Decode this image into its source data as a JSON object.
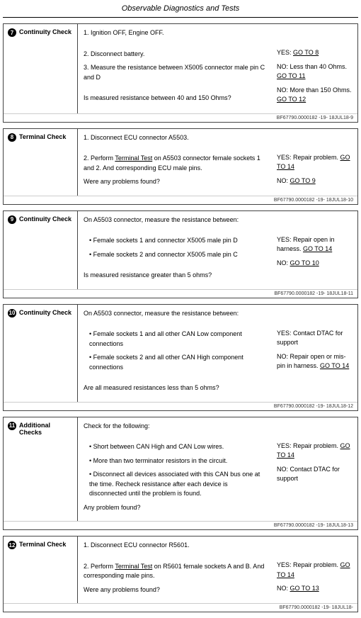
{
  "title": "Observable Diagnostics and Tests",
  "footerRef": "BF67790.0000182 -19- 18JUL18-",
  "steps": [
    {
      "num": "7",
      "label": "Continuity Check",
      "mid": [
        {
          "t": "p",
          "v": "1. Ignition OFF, Engine OFF."
        },
        {
          "t": "sp"
        },
        {
          "t": "p",
          "v": "2. Disconnect battery."
        },
        {
          "t": "p",
          "v": "3. Measure the resistance between X5005 connector male pin C and D"
        },
        {
          "t": "sp"
        },
        {
          "t": "p",
          "v": "Is measured resistance between 40 and 150 Ohms?"
        }
      ],
      "right": [
        {
          "pre": "YES:  ",
          "link": "GO TO 8"
        },
        {
          "pre": "NO:  Less than 40 Ohms.  ",
          "link": "GO TO 11"
        },
        {
          "pre": "NO:  More than 150 Ohms.  ",
          "link": "GO TO 12"
        }
      ],
      "foot": "9"
    },
    {
      "num": "8",
      "label": "Terminal Check",
      "mid": [
        {
          "t": "p",
          "v": "1. Disconnect ECU connector A5503."
        },
        {
          "t": "sp"
        },
        {
          "t": "p",
          "v": "2. Perform ",
          "u": "Terminal Test",
          "v2": " on A5503 connector female sockets 1 and 2.  And corresponding ECU male pins."
        },
        {
          "t": "p",
          "v": "Were any problems found?"
        }
      ],
      "right": [
        {
          "pre": "YES:  Repair problem. ",
          "link": "GO TO 14"
        },
        {
          "pre": "NO:  ",
          "link": "GO TO 9"
        }
      ],
      "foot": "10"
    },
    {
      "num": "9",
      "label": "Continuity Check",
      "mid": [
        {
          "t": "p",
          "v": "On A5503 connector, measure the resistance between:"
        },
        {
          "t": "sp"
        },
        {
          "t": "b",
          "v": "Female sockets 1 and connector X5005 male pin D"
        },
        {
          "t": "b",
          "v": "Female sockets 2 and connector X5005 male pin C"
        },
        {
          "t": "sp"
        },
        {
          "t": "p",
          "v": "Is measured resistance greater than 5 ohms?"
        }
      ],
      "right": [
        {
          "pre": "YES:  Repair open in harness. ",
          "link": "GO TO 14"
        },
        {
          "pre": "NO:  ",
          "link": "GO TO 10"
        }
      ],
      "foot": "11"
    },
    {
      "num": "10",
      "label": "Continuity Check",
      "mid": [
        {
          "t": "p",
          "v": "On A5503 connector, measure the resistance between:"
        },
        {
          "t": "sp"
        },
        {
          "t": "b",
          "v": "Female sockets 1 and all other CAN Low component connections"
        },
        {
          "t": "b",
          "v": "Female sockets 2 and all other CAN High component connections"
        },
        {
          "t": "sp"
        },
        {
          "t": "p",
          "v": "Are all measured resistances less than 5 ohms?"
        }
      ],
      "right": [
        {
          "pre": "YES:  Contact DTAC for support"
        },
        {
          "pre": "NO:   Repair open or mis-pin in harness. ",
          "link": "GO TO 14"
        }
      ],
      "foot": "12"
    },
    {
      "num": "11",
      "label": "Additional Checks",
      "mid": [
        {
          "t": "p",
          "v": "Check for the following:"
        },
        {
          "t": "sp"
        },
        {
          "t": "b",
          "v": "Short between CAN High and CAN Low wires."
        },
        {
          "t": "b",
          "v": "More than two terminator resistors in the circuit."
        },
        {
          "t": "b",
          "v": "Disconnect all devices associated with this CAN bus one at the time.  Recheck resistance after each device is disconnected until the problem is found."
        },
        {
          "t": "p",
          "v": "Any problem found?"
        }
      ],
      "right": [
        {
          "pre": "YES:  Repair problem. ",
          "link": "GO TO 14"
        },
        {
          "pre": "NO:  Contact DTAC for support"
        }
      ],
      "foot": "13"
    },
    {
      "num": "12",
      "label": "Terminal Check",
      "mid": [
        {
          "t": "p",
          "v": "1. Disconnect ECU connector R5601."
        },
        {
          "t": "sp"
        },
        {
          "t": "p",
          "v": "2. Perform ",
          "u": "Terminal Test",
          "v2": " on R5601 female sockets A and B. And corresponding male pins."
        },
        {
          "t": "p",
          "v": "Were any problems found?"
        }
      ],
      "right": [
        {
          "pre": "YES:  Repair problem. ",
          "link": "GO TO 14"
        },
        {
          "pre": "NO:  ",
          "link": "GO TO 13"
        }
      ],
      "foot": ""
    }
  ]
}
